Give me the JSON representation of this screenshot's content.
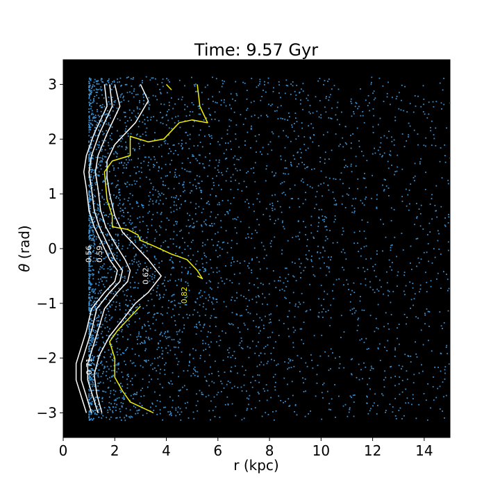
{
  "chart_data": {
    "type": "scatter",
    "title": "Time: 9.57 Gyr",
    "xlabel": "r (kpc)",
    "ylabel_symbol": "θ",
    "ylabel_unit": " (rad)",
    "xlim": [
      0,
      15
    ],
    "ylim": [
      -3.45,
      3.45
    ],
    "xticks": [
      0,
      2,
      4,
      6,
      8,
      10,
      12,
      14
    ],
    "yticks": [
      -3,
      -2,
      -1,
      0,
      1,
      2,
      3
    ],
    "background": "#000000",
    "point_color": "#3a8fd0",
    "scatter_distribution": {
      "r_range": [
        1.0,
        15.0
      ],
      "theta_range": [
        -3.14,
        3.14
      ],
      "count": 4000
    },
    "contours": [
      {
        "level_label": "0.56",
        "color": "#ffffff",
        "paths": [
          [
            [
              1.6,
              3.0
            ],
            [
              1.7,
              2.6
            ],
            [
              1.2,
              2.1
            ],
            [
              0.9,
              1.7
            ],
            [
              0.8,
              1.4
            ],
            [
              0.9,
              1.1
            ],
            [
              1.0,
              0.7
            ],
            [
              1.2,
              0.4
            ],
            [
              1.5,
              0.1
            ],
            [
              1.8,
              -0.2
            ],
            [
              2.1,
              -0.4
            ],
            [
              2.0,
              -0.6
            ],
            [
              1.6,
              -0.8
            ],
            [
              1.1,
              -1.1
            ],
            [
              0.9,
              -1.5
            ],
            [
              0.7,
              -1.8
            ],
            [
              0.5,
              -2.1
            ],
            [
              0.5,
              -2.4
            ],
            [
              0.7,
              -2.7
            ],
            [
              0.9,
              -3.0
            ]
          ]
        ]
      },
      {
        "level_label": "0.59",
        "color": "#ffffff",
        "paths": [
          [
            [
              1.8,
              3.0
            ],
            [
              1.9,
              2.6
            ],
            [
              1.4,
              2.1
            ],
            [
              1.1,
              1.7
            ],
            [
              1.0,
              1.4
            ],
            [
              1.1,
              1.1
            ],
            [
              1.2,
              0.7
            ],
            [
              1.4,
              0.4
            ],
            [
              1.7,
              0.1
            ],
            [
              2.0,
              -0.2
            ],
            [
              2.3,
              -0.4
            ],
            [
              2.2,
              -0.6
            ],
            [
              1.8,
              -0.8
            ],
            [
              1.3,
              -1.1
            ],
            [
              1.1,
              -1.5
            ],
            [
              0.9,
              -1.8
            ],
            [
              0.7,
              -2.1
            ],
            [
              0.7,
              -2.4
            ],
            [
              0.9,
              -2.7
            ],
            [
              1.1,
              -3.0
            ]
          ]
        ]
      },
      {
        "level_label": "0.62",
        "color": "#ffffff",
        "paths": [
          [
            [
              2.0,
              3.0
            ],
            [
              2.2,
              2.6
            ],
            [
              1.7,
              2.1
            ],
            [
              1.35,
              1.7
            ],
            [
              1.25,
              1.4
            ],
            [
              1.35,
              1.1
            ],
            [
              1.45,
              0.7
            ],
            [
              1.65,
              0.4
            ],
            [
              2.0,
              0.1
            ],
            [
              2.4,
              -0.2
            ],
            [
              2.6,
              -0.4
            ],
            [
              2.5,
              -0.6
            ],
            [
              2.1,
              -0.8
            ],
            [
              1.6,
              -1.1
            ],
            [
              1.35,
              -1.5
            ],
            [
              1.15,
              -1.8
            ],
            [
              0.95,
              -2.1
            ],
            [
              0.95,
              -2.4
            ],
            [
              1.15,
              -2.7
            ],
            [
              1.35,
              -3.0
            ]
          ]
        ]
      },
      {
        "level_label": "0.71",
        "color": "#ffffff",
        "paths": [
          [
            [
              3.0,
              3.0
            ],
            [
              3.3,
              2.7
            ],
            [
              2.8,
              2.3
            ],
            [
              2.0,
              1.9
            ],
            [
              1.7,
              1.6
            ],
            [
              1.7,
              1.3
            ],
            [
              1.8,
              1.0
            ],
            [
              2.0,
              0.6
            ],
            [
              2.3,
              0.3
            ],
            [
              2.8,
              0.05
            ],
            [
              3.3,
              -0.2
            ],
            [
              3.8,
              -0.5
            ],
            [
              3.3,
              -0.8
            ],
            [
              2.8,
              -1.0
            ],
            [
              2.3,
              -1.3
            ],
            [
              1.8,
              -1.6
            ],
            [
              1.4,
              -1.95
            ],
            [
              1.2,
              -2.3
            ],
            [
              1.3,
              -2.65
            ],
            [
              1.5,
              -3.0
            ]
          ]
        ]
      },
      {
        "level_label": "0.82",
        "color": "#f2f200",
        "paths": [
          [
            [
              4.0,
              3.0
            ],
            [
              4.2,
              2.9
            ]
          ],
          [
            [
              5.2,
              3.0
            ],
            [
              5.3,
              2.6
            ],
            [
              5.6,
              2.3
            ],
            [
              5.0,
              2.35
            ],
            [
              4.5,
              2.3
            ],
            [
              3.9,
              2.0
            ],
            [
              3.3,
              1.95
            ],
            [
              2.6,
              2.05
            ],
            [
              2.6,
              1.7
            ],
            [
              1.9,
              1.6
            ],
            [
              1.6,
              1.4
            ],
            [
              1.7,
              0.9
            ],
            [
              1.9,
              0.6
            ],
            [
              1.9,
              0.4
            ],
            [
              2.5,
              0.35
            ],
            [
              2.9,
              0.25
            ],
            [
              3.0,
              0.15
            ],
            [
              3.5,
              0.05
            ],
            [
              4.2,
              -0.1
            ],
            [
              4.8,
              -0.2
            ],
            [
              5.2,
              -0.4
            ],
            [
              5.4,
              -0.55
            ],
            [
              5.2,
              -0.5
            ]
          ],
          [
            [
              3.0,
              -1.05
            ],
            [
              2.4,
              -1.35
            ],
            [
              2.1,
              -1.5
            ],
            [
              1.8,
              -1.7
            ],
            [
              2.0,
              -2.0
            ],
            [
              2.0,
              -2.35
            ],
            [
              2.3,
              -2.6
            ],
            [
              2.6,
              -2.8
            ],
            [
              3.5,
              -3.0
            ]
          ]
        ]
      }
    ]
  }
}
